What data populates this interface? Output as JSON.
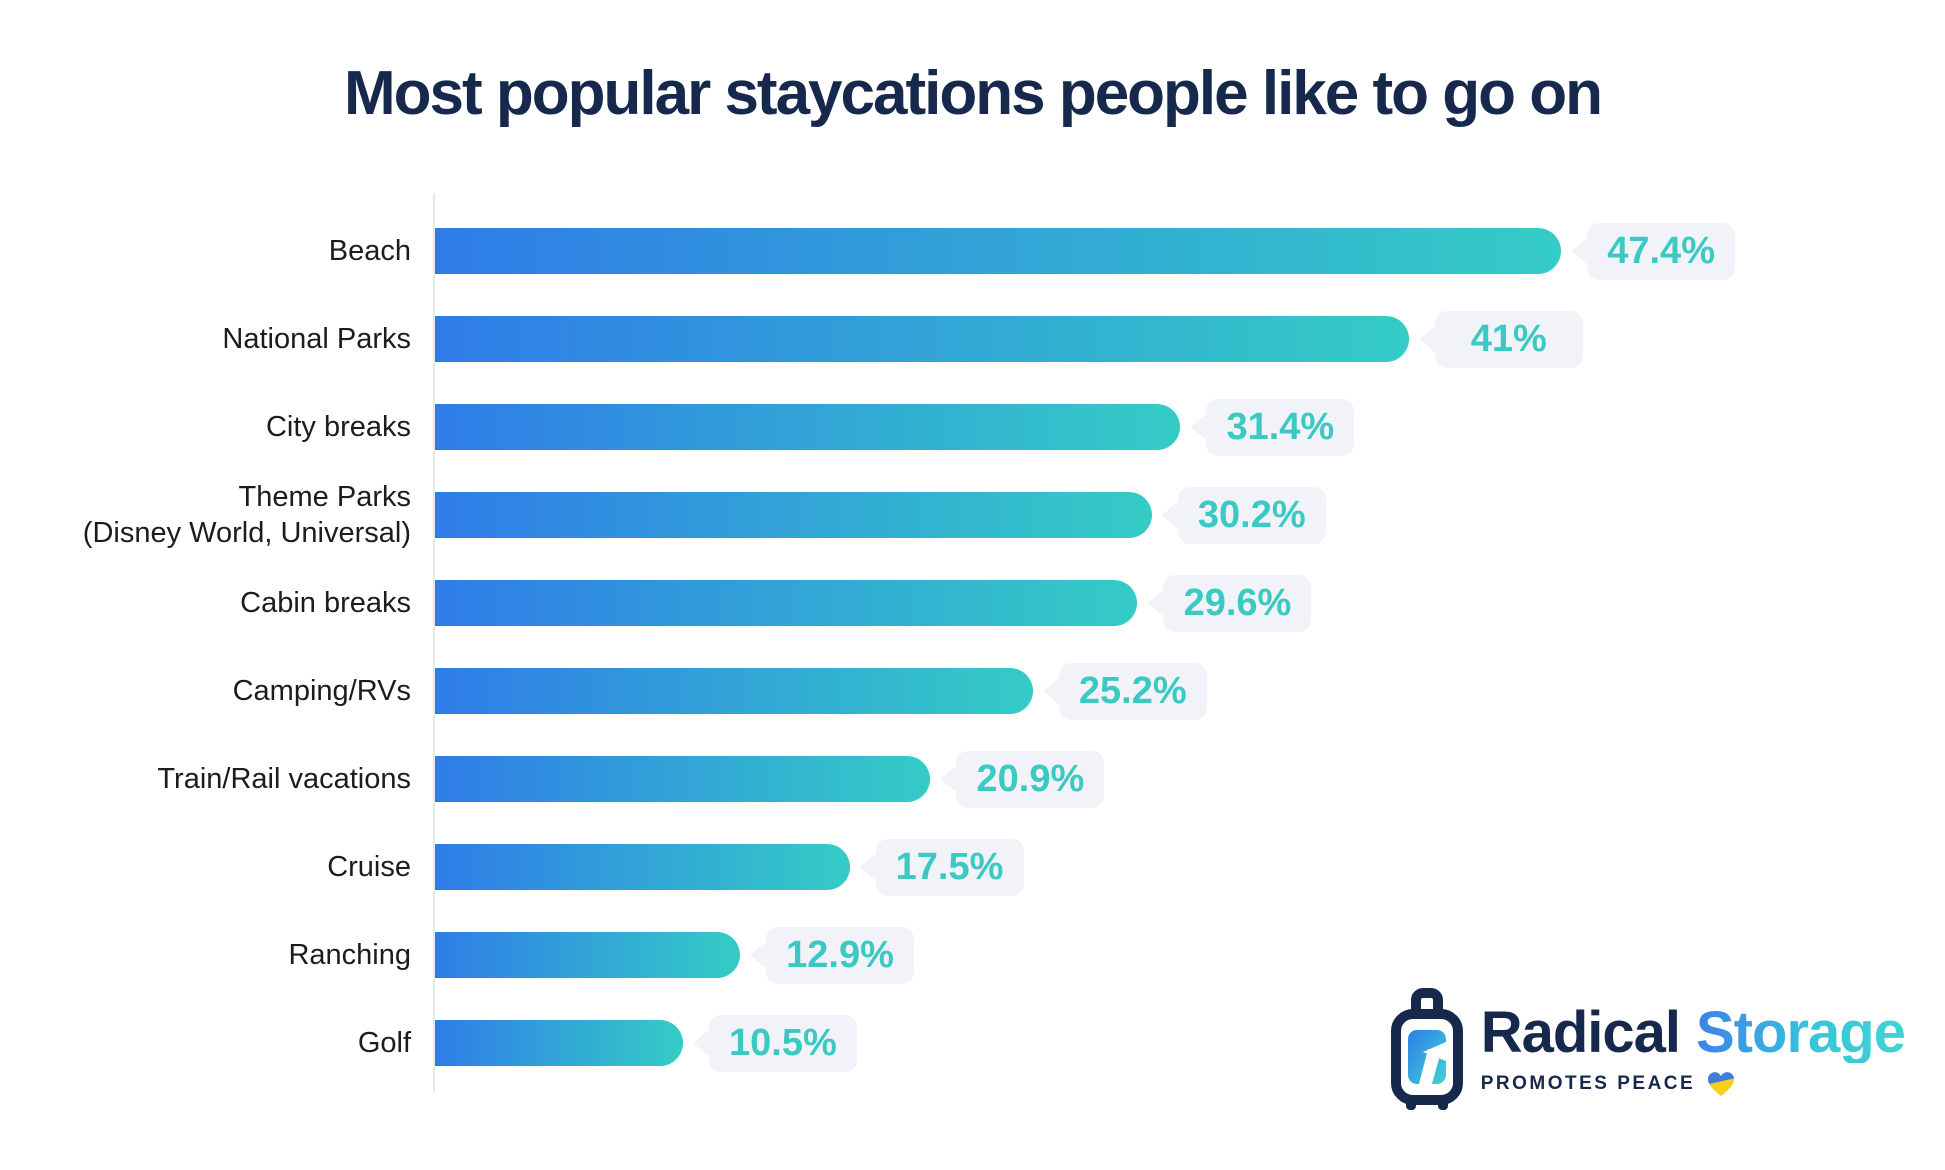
{
  "title": "Most popular staycations people like to go on",
  "chart_data": {
    "type": "bar",
    "orientation": "horizontal",
    "title": "Most popular staycations people like to go on",
    "categories": [
      "Beach",
      "National Parks",
      "City breaks",
      "Theme Parks\n(Disney World, Universal)",
      "Cabin breaks",
      "Camping/RVs",
      "Train/Rail vacations",
      "Cruise",
      "Ranching",
      "Golf"
    ],
    "values": [
      47.4,
      41,
      31.4,
      30.2,
      29.6,
      25.2,
      20.9,
      17.5,
      12.9,
      10.5
    ],
    "value_labels": [
      "47.4%",
      "41%",
      "31.4%",
      "30.2%",
      "29.6%",
      "25.2%",
      "20.9%",
      "17.5%",
      "12.9%",
      "10.5%"
    ],
    "xlim": [
      0,
      47.4
    ],
    "grid": false,
    "bar_gradient_start": "#2f7ce8",
    "bar_gradient_end": "#34ccc6",
    "value_label_color": "#3bc9c3",
    "value_label_bg": "#f1f3f8",
    "axis_line_color": "#e8e8e8",
    "category_label_color": "#1c1c1c",
    "title_color": "#16294d"
  },
  "logo": {
    "brand_primary": "Radical",
    "brand_secondary": "Storage",
    "tagline": "PROMOTES PEACE",
    "suitcase_icon": "suitcase-with-arrow-mark",
    "heart_icon": "ukraine-heart",
    "primary_color": "#16294d",
    "storage_gradient_start": "#3b82e8",
    "storage_gradient_end": "#40d4d4",
    "heart_top_color": "#3f7dd8",
    "heart_bottom_color": "#f8cf1f"
  }
}
